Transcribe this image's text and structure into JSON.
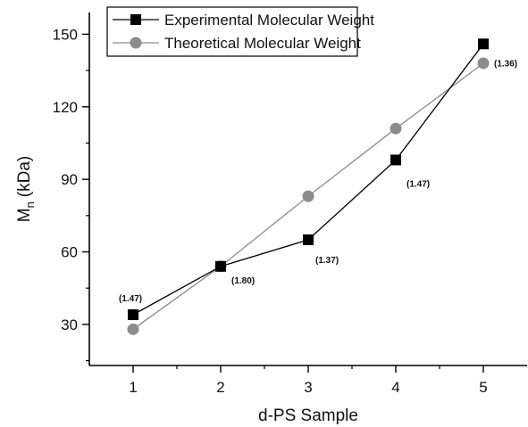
{
  "chart_data": {
    "type": "line",
    "xlabel": "d-PS Sample",
    "ylabel_main": "M",
    "ylabel_sub": "n",
    "ylabel_unit": "(kDa)",
    "x_ticks": [
      1,
      2,
      3,
      4,
      5
    ],
    "y_ticks": [
      30,
      60,
      90,
      120,
      150
    ],
    "xlim": [
      0.5,
      5.5
    ],
    "ylim": [
      13,
      159
    ],
    "grid": false,
    "legend_placement": "top-left",
    "series": [
      {
        "name": "Experimental Molecular Weight",
        "marker": "square",
        "color": "#000000",
        "x": [
          1,
          2,
          3,
          4,
          5
        ],
        "y": [
          34,
          54,
          65,
          98,
          146
        ],
        "labels": [
          "(1.47)",
          "(1.80)",
          "(1.37)",
          "(1.47)",
          "(1.36)"
        ]
      },
      {
        "name": "Theoretical Molecular Weight",
        "marker": "circle",
        "color": "#8c8c8c",
        "x": [
          1,
          2,
          3,
          4,
          5
        ],
        "y": [
          28,
          54,
          83,
          111,
          138
        ]
      }
    ]
  }
}
